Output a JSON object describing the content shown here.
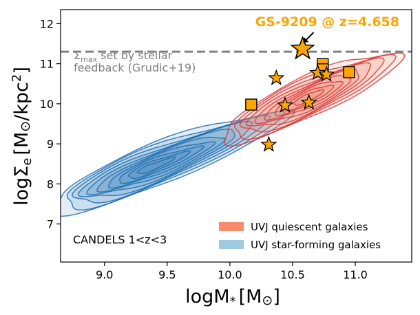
{
  "chart_data": {
    "type": "scatter",
    "xlabel": "logM",
    "xlabel_sub": "*",
    "xlabel_unit": "[M",
    "xlabel_unit_sym": "⊙",
    "xlabel_unit_close": "]",
    "ylabel_main": "logΣ",
    "ylabel_sub": "e",
    "ylabel_unit": "[M",
    "ylabel_unit_sym": "⊙",
    "ylabel_unit_tail": "/kpc",
    "ylabel_sup": "2",
    "ylabel_close": "]",
    "xlim": [
      8.65,
      11.45
    ],
    "ylim": [
      6.05,
      12.35
    ],
    "x_ticks": [
      9.0,
      9.5,
      10.0,
      10.5,
      11.0
    ],
    "x_tick_labels": [
      "9.0",
      "9.5",
      "10.0",
      "10.5",
      "11.0"
    ],
    "y_ticks": [
      7,
      8,
      9,
      10,
      11,
      12
    ],
    "y_tick_labels": [
      "7",
      "8",
      "9",
      "10",
      "11",
      "12"
    ],
    "title": "GS-9209 @ z=4.658",
    "title_color": "#FFA500",
    "field_label": "CANDELS 1<z<3",
    "sigma_max_line": {
      "y": 11.3,
      "color": "#808080",
      "label_sigma": "Σ",
      "label_sub": "max",
      "label_line1": " set by stellar",
      "label_line2": "feedback (Grudic+19)"
    },
    "legend": {
      "placement": "bottom-right",
      "items": [
        {
          "label": "UVJ quiescent galaxies",
          "color": "#FA8A6E"
        },
        {
          "label": "UVJ star-forming galaxies",
          "color": "#9ECAE1"
        }
      ]
    },
    "gs9209": {
      "x": 10.58,
      "y": 11.37,
      "color": "#FFA500"
    },
    "stars": [
      {
        "x": 10.37,
        "y": 10.64
      },
      {
        "x": 10.44,
        "y": 9.96
      },
      {
        "x": 10.63,
        "y": 10.03
      },
      {
        "x": 10.7,
        "y": 10.77
      },
      {
        "x": 10.77,
        "y": 10.73
      },
      {
        "x": 10.31,
        "y": 8.98
      }
    ],
    "squares": [
      {
        "x": 10.17,
        "y": 9.98
      },
      {
        "x": 10.74,
        "y": 10.99
      },
      {
        "x": 10.74,
        "y": 10.86
      },
      {
        "x": 10.95,
        "y": 10.79
      }
    ],
    "star_forming_contours": {
      "cx": 9.38,
      "cy": 8.42,
      "hw": 0.85,
      "hh": 0.52,
      "tilt_deg": -22,
      "levels": 10,
      "fill": "#2C7FB8",
      "line": "#1F6FB2"
    },
    "quiescent_contours": {
      "cx": 10.62,
      "cy": 10.15,
      "hw": 0.75,
      "hh": 0.5,
      "tilt_deg": -25,
      "levels": 9,
      "fill": "#F08070",
      "line": "#D93A3A"
    }
  }
}
